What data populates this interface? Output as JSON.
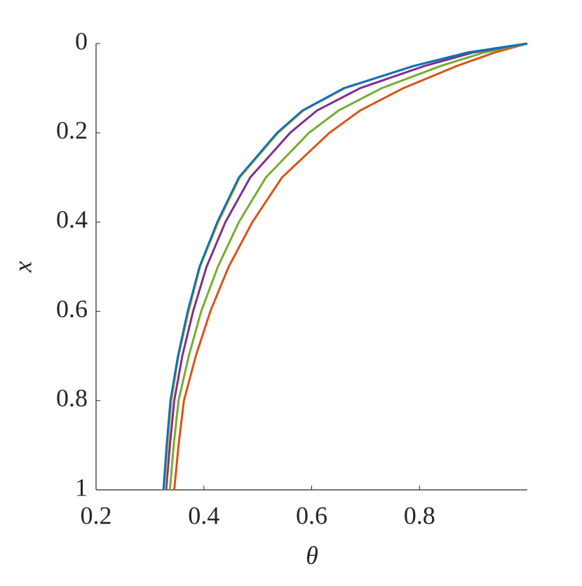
{
  "chart_data": {
    "type": "line",
    "xlabel": "θ",
    "ylabel": "x",
    "y": [
      0,
      0.02,
      0.05,
      0.1,
      0.15,
      0.2,
      0.3,
      0.4,
      0.5,
      0.6,
      0.7,
      0.8,
      0.9,
      1
    ],
    "series": [
      {
        "color": "#d95319",
        "values": [
          1.0,
          0.94,
          0.87,
          0.77,
          0.69,
          0.633,
          0.545,
          0.49,
          0.446,
          0.412,
          0.385,
          0.363,
          0.353,
          0.345
        ]
      },
      {
        "color": "#77ac30",
        "values": [
          1.0,
          0.92,
          0.84,
          0.73,
          0.65,
          0.595,
          0.515,
          0.465,
          0.426,
          0.395,
          0.372,
          0.353,
          0.344,
          0.337
        ]
      },
      {
        "color": "#7e2f8e",
        "values": [
          1.0,
          0.9,
          0.81,
          0.69,
          0.61,
          0.56,
          0.486,
          0.44,
          0.405,
          0.38,
          0.36,
          0.345,
          0.337,
          0.33
        ]
      },
      {
        "color": "#edb120",
        "values": [
          1.0,
          0.89,
          0.79,
          0.662,
          0.585,
          0.538,
          0.467,
          0.427,
          0.393,
          0.372,
          0.353,
          0.34,
          0.333,
          0.327
        ]
      },
      {
        "color": "#0072bd",
        "values": [
          1.0,
          0.89,
          0.79,
          0.66,
          0.583,
          0.536,
          0.465,
          0.425,
          0.392,
          0.37,
          0.352,
          0.338,
          0.331,
          0.325
        ]
      }
    ],
    "xlim": [
      0.2,
      1
    ],
    "ylim": [
      0,
      1
    ],
    "y_reversed": true,
    "xticks": [
      0.2,
      0.4,
      0.6,
      0.8
    ],
    "yticks": [
      0,
      0.2,
      0.4,
      0.6,
      0.8,
      1
    ]
  }
}
